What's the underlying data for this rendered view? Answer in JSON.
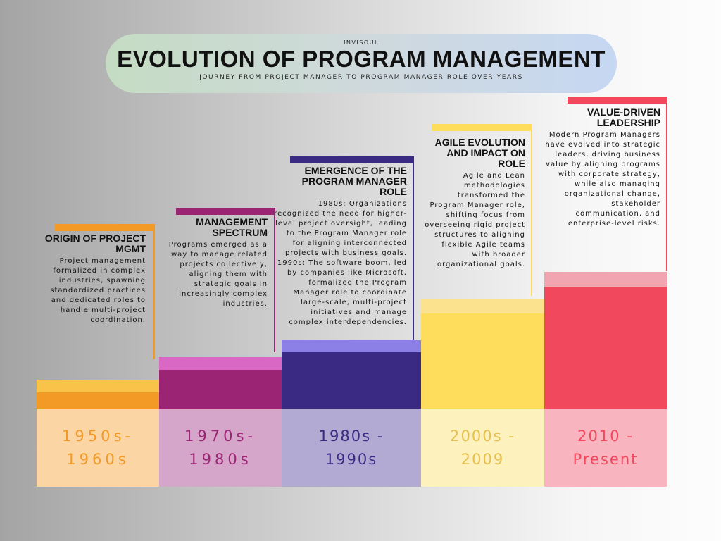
{
  "header": {
    "brand": "INVISOUL",
    "title": "EVOLUTION OF PROGRAM MANAGEMENT",
    "subtitle": "JOURNEY FROM PROJECT MANAGER TO PROGRAM MANAGER ROLE OVER YEARS"
  },
  "stages": [
    {
      "period_line1": "1950s-",
      "period_line2": "1960s",
      "title": "ORIGIN OF PROJECT MGMT",
      "body": "Project management formalized in complex industries, spawning standardized practices and dedicated roles to handle multi-project coordination.",
      "colors": {
        "light": "#f9c248",
        "dark": "#f39a26",
        "label_bg": "#fbd5a3",
        "label_text": "#f39a26"
      }
    },
    {
      "period_line1": "1970s-",
      "period_line2": "1980s",
      "title": "MANAGEMENT SPECTRUM",
      "body": "Programs emerged as a way to manage related projects collectively, aligning them with strategic goals in increasingly complex industries.",
      "colors": {
        "light": "#d968c4",
        "dark": "#9c2475",
        "label_bg": "#d5a6c9",
        "label_text": "#9c2475"
      }
    },
    {
      "period_line1": "1980s -",
      "period_line2": "1990s",
      "title": "EMERGENCE OF THE PROGRAM MANAGER ROLE",
      "body": "1980s: Organizations recognized the need for higher-level project oversight, leading to the Program Manager role for aligning interconnected projects with business goals. 1990s: The software boom, led by companies like Microsoft, formalized the Program Manager role to coordinate large-scale, multi-project initiatives and manage complex interdependencies.",
      "colors": {
        "light": "#8c7fe6",
        "dark": "#3b2a83",
        "label_bg": "#b3aad3",
        "label_text": "#3b2a83"
      }
    },
    {
      "period_line1": "2000s -",
      "period_line2": "2009",
      "title": "AGILE EVOLUTION AND IMPACT ON ROLE",
      "body": "Agile and Lean methodologies transformed the Program Manager role, shifting focus from overseeing rigid project structures to aligning flexible Agile teams with broader organizational goals.",
      "colors": {
        "light": "#fbe28f",
        "dark": "#fedd5c",
        "label_bg": "#fdf1bd",
        "label_text": "#e6bf4e"
      }
    },
    {
      "period_line1": "2010 -",
      "period_line2": "Present",
      "title": "VALUE-DRIVEN LEADERSHIP",
      "body": "Modern Program Managers have evolved into strategic leaders, driving business value by aligning programs with corporate strategy, while also managing organizational change, stakeholder communication, and enterprise-level risks.",
      "colors": {
        "light": "#f0a5b1",
        "dark": "#f2485d",
        "label_bg": "#f9b5bf",
        "label_text": "#f2485d"
      }
    }
  ]
}
